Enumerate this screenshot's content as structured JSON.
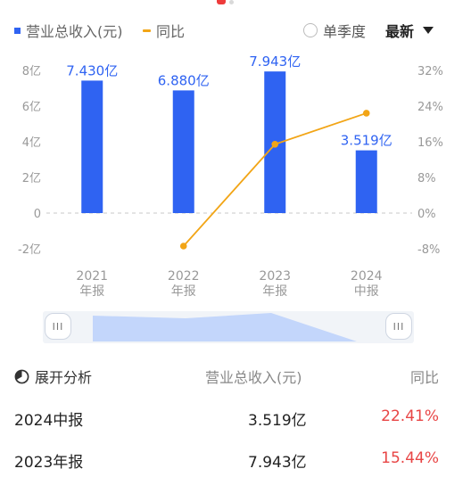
{
  "legend": {
    "revenue_label": "营业总收入(元)",
    "yoy_label": "同比"
  },
  "controls": {
    "quarter_label": "单季度",
    "latest_label": "最新"
  },
  "colors": {
    "bar": "#2f63f2",
    "line": "#f2a516",
    "positive": "#e84545",
    "axis_text": "#999999"
  },
  "chart_data": {
    "type": "bar",
    "categories": [
      "2021年报",
      "2022年报",
      "2023年报",
      "2024中报"
    ],
    "category_lines": [
      [
        "2021",
        "年报"
      ],
      [
        "2022",
        "年报"
      ],
      [
        "2023",
        "年报"
      ],
      [
        "2024",
        "中报"
      ]
    ],
    "series": [
      {
        "name": "营业总收入(元)",
        "type": "bar",
        "axis": "left",
        "values": [
          7.43,
          6.88,
          7.943,
          3.519
        ],
        "labels": [
          "7.430亿",
          "6.880亿",
          "7.943亿",
          "3.519亿"
        ]
      },
      {
        "name": "同比",
        "type": "line",
        "axis": "right",
        "values": [
          null,
          -7.4,
          15.44,
          22.41
        ]
      }
    ],
    "y_left": {
      "ylim": [
        -2,
        8
      ],
      "ticks": [
        8,
        6,
        4,
        2,
        0,
        -2
      ],
      "tick_labels": [
        "8亿",
        "6亿",
        "4亿",
        "2亿",
        "0",
        "-2亿"
      ]
    },
    "y_right": {
      "ylim": [
        -8,
        32
      ],
      "ticks": [
        32,
        24,
        16,
        8,
        0,
        -8
      ],
      "tick_labels": [
        "32%",
        "24%",
        "16%",
        "8%",
        "0%",
        "-8%"
      ]
    },
    "grid": "dashed zero line only",
    "legend_position": "top-left"
  },
  "table": {
    "expand_label": "展开分析",
    "col_revenue": "营业总收入(元)",
    "col_yoy": "同比",
    "rows": [
      {
        "period": "2024中报",
        "revenue": "3.519亿",
        "yoy": "22.41%"
      },
      {
        "period": "2023年报",
        "revenue": "7.943亿",
        "yoy": "15.44%"
      }
    ]
  }
}
